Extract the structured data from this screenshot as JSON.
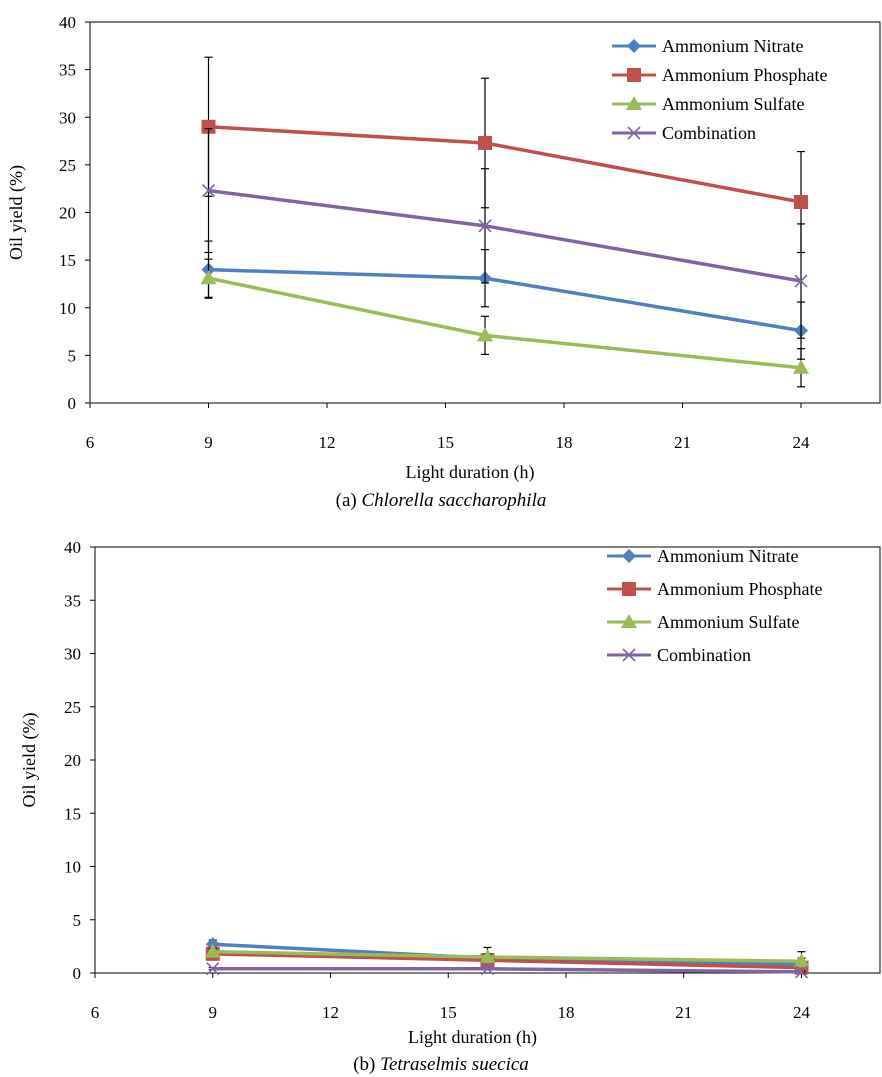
{
  "chart_data": [
    {
      "type": "line",
      "caption_prefix": "(a)",
      "caption_species": "Chlorella saccharophila",
      "xlabel": "Light duration (h)",
      "ylabel": "Oil yield (%)",
      "xlim": [
        6,
        26
      ],
      "ylim": [
        0,
        40
      ],
      "xticks": [
        6,
        9,
        12,
        15,
        18,
        21,
        24
      ],
      "yticks": [
        0,
        5,
        10,
        15,
        20,
        25,
        30,
        35,
        40
      ],
      "legend_position": "top-right",
      "x": [
        9,
        16,
        24
      ],
      "series": [
        {
          "name": "Ammonium Nitrate",
          "color": "#4F81BD",
          "marker": "diamond",
          "values": [
            14.0,
            13.1,
            7.6
          ],
          "errors": [
            3.0,
            3.0,
            3.0
          ]
        },
        {
          "name": "Ammonium Phosphate",
          "color": "#C0504D",
          "marker": "square",
          "values": [
            29.0,
            27.3,
            21.1
          ],
          "errors": [
            7.3,
            6.8,
            5.3
          ]
        },
        {
          "name": "Ammonium Sulfate",
          "color": "#9BBB59",
          "marker": "triangle",
          "values": [
            13.1,
            7.1,
            3.7
          ],
          "errors": [
            2.0,
            2.0,
            2.0
          ]
        },
        {
          "name": "Combination",
          "color": "#8064A2",
          "marker": "x",
          "values": [
            22.3,
            18.6,
            12.8
          ],
          "errors": [
            6.5,
            6.0,
            6.0
          ]
        }
      ]
    },
    {
      "type": "line",
      "caption_prefix": "(b)",
      "caption_species": "Tetraselmis suecica",
      "xlabel": "Light duration (h)",
      "ylabel": "Oil yield (%)",
      "xlim": [
        6,
        26
      ],
      "ylim": [
        0,
        40
      ],
      "xticks": [
        6,
        9,
        12,
        15,
        18,
        21,
        24
      ],
      "yticks": [
        0,
        5,
        10,
        15,
        20,
        25,
        30,
        35,
        40
      ],
      "legend_position": "top-right",
      "x": [
        9,
        16,
        24
      ],
      "series": [
        {
          "name": "Ammonium Nitrate",
          "color": "#4F81BD",
          "marker": "diamond",
          "values": [
            2.7,
            1.4,
            0.8
          ],
          "errors": [
            0.4,
            1.0,
            1.2
          ]
        },
        {
          "name": "Ammonium Phosphate",
          "color": "#C0504D",
          "marker": "square",
          "values": [
            1.8,
            1.2,
            0.5
          ],
          "errors": [
            0.3,
            0.3,
            0.3
          ]
        },
        {
          "name": "Ammonium Sulfate",
          "color": "#9BBB59",
          "marker": "triangle",
          "values": [
            2.0,
            1.5,
            1.1
          ],
          "errors": [
            0.3,
            0.3,
            0.3
          ]
        },
        {
          "name": "Combination",
          "color": "#8064A2",
          "marker": "x",
          "values": [
            0.4,
            0.4,
            0.1
          ],
          "errors": [
            0.1,
            0.1,
            0.1
          ]
        }
      ]
    }
  ]
}
